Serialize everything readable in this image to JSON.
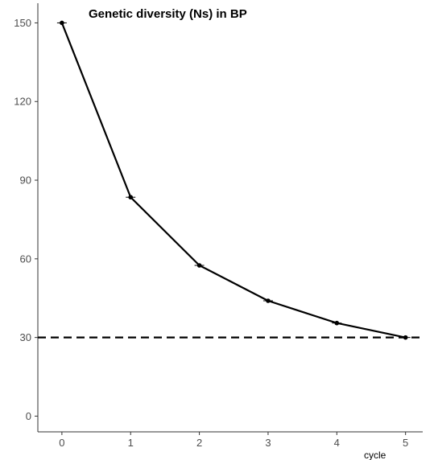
{
  "chart_data": {
    "type": "line",
    "title": "Genetic diversity (Ns) in BP",
    "xlabel": "cycle",
    "ylabel": "",
    "x": [
      0,
      1,
      2,
      3,
      4,
      5
    ],
    "series": [
      {
        "values": [
          150,
          83.5,
          57.5,
          44,
          35.5,
          30
        ]
      }
    ],
    "xlim": [
      -0.35,
      5.25
    ],
    "ylim": [
      -6,
      157.5
    ],
    "x_ticks": [
      0,
      1,
      2,
      3,
      4,
      5
    ],
    "y_ticks": [
      0,
      30,
      60,
      90,
      120,
      150
    ],
    "x_tick_labels": [
      "0",
      "1",
      "2",
      "3",
      "4",
      "5"
    ],
    "y_tick_labels": [
      "0",
      "30",
      "60",
      "90",
      "120",
      "150"
    ],
    "reference_line": {
      "y": 30,
      "style": "dashed"
    },
    "grid": false,
    "colors": {
      "line": "#000000",
      "axis": "#333333",
      "tick_text": "#4d4d4d"
    }
  }
}
